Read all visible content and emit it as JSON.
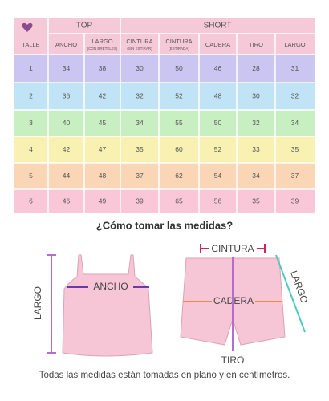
{
  "table": {
    "groups": [
      "TOP",
      "SHORT"
    ],
    "columns": [
      {
        "label": "TALLE"
      },
      {
        "label": "ANCHO"
      },
      {
        "label": "LARGO",
        "note": "(CON BRETELES)"
      },
      {
        "label": "CINTURA",
        "note": "(SIN ESTIRAR)"
      },
      {
        "label": "CINTURA",
        "note": "(ESTIRADA)"
      },
      {
        "label": "CADERA"
      },
      {
        "label": "TIRO"
      },
      {
        "label": "LARGO"
      }
    ],
    "rows": [
      [
        1,
        34,
        38,
        30,
        50,
        46,
        28,
        31
      ],
      [
        2,
        36,
        42,
        32,
        52,
        48,
        30,
        32
      ],
      [
        3,
        40,
        45,
        34,
        55,
        50,
        32,
        34
      ],
      [
        4,
        42,
        47,
        35,
        60,
        52,
        33,
        35
      ],
      [
        5,
        44,
        48,
        37,
        62,
        54,
        34,
        37
      ],
      [
        6,
        46,
        49,
        39,
        65,
        56,
        35,
        39
      ]
    ]
  },
  "heading": "¿Cómo tomar las medidas?",
  "top_labels": {
    "largo": "LARGO",
    "ancho": "ANCHO"
  },
  "short_labels": {
    "cintura": "CINTURA",
    "cadera": "CADERA",
    "largo": "LARGO",
    "tiro": "TIRO"
  },
  "footer": "Todas las medidas están tomadas en plano y en centímetros."
}
